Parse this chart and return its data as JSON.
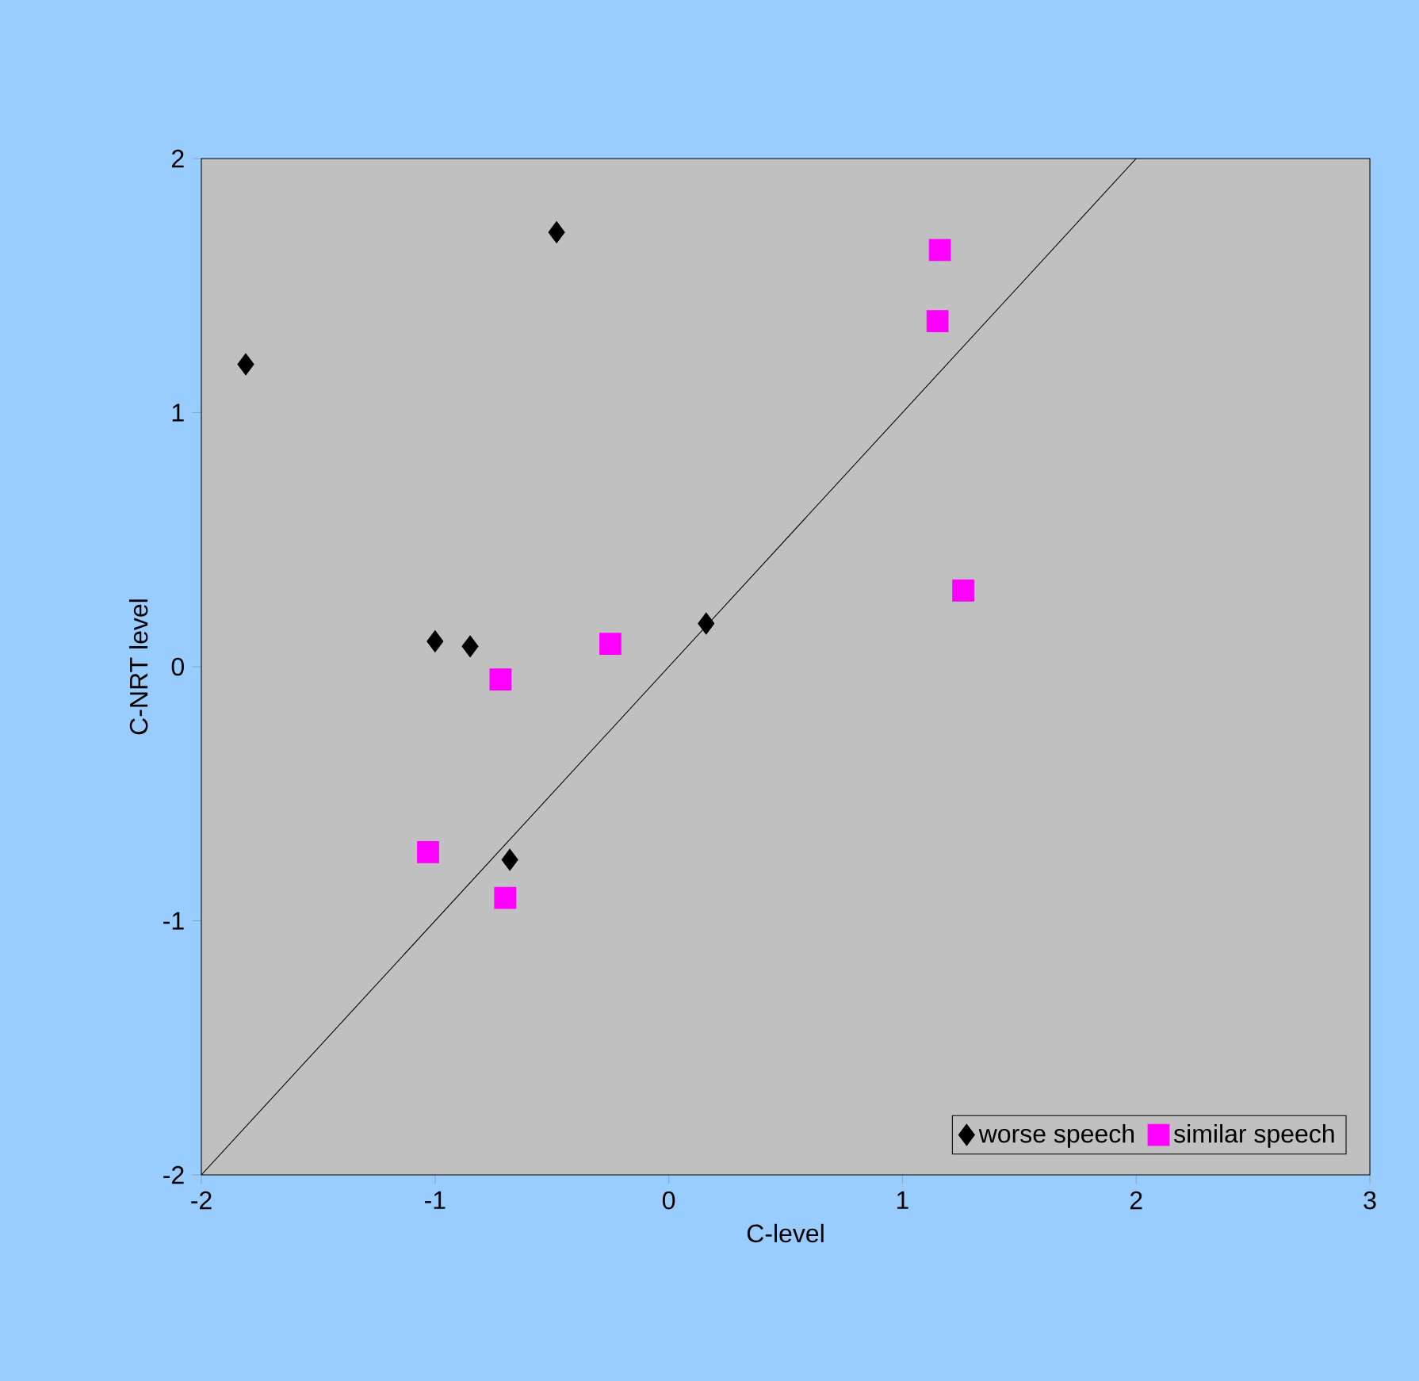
{
  "chart_data": {
    "type": "scatter",
    "xlabel": "C-level",
    "ylabel": "C-NRT level",
    "xlim": [
      -2,
      3
    ],
    "ylim": [
      -2,
      2
    ],
    "xticks": [
      -2,
      -1,
      0,
      1,
      2,
      3
    ],
    "yticks": [
      -2,
      -1,
      0,
      1,
      2
    ],
    "legend": "bottom right",
    "grid": false,
    "series": [
      {
        "name": "worse speech",
        "color": "#000000",
        "marker": "diamond",
        "x": [
          -1.81,
          -0.48,
          -1.0,
          -0.85,
          0.16,
          -0.68
        ],
        "values": [
          1.19,
          1.71,
          0.1,
          0.08,
          0.17,
          -0.76
        ]
      },
      {
        "name": "similar speech",
        "color": "#ff00ff",
        "marker": "square",
        "x": [
          1.16,
          1.15,
          1.26,
          -0.25,
          -0.72,
          -1.03,
          -0.7
        ],
        "values": [
          1.64,
          1.36,
          0.3,
          0.09,
          -0.05,
          -0.73,
          -0.91
        ]
      },
      {
        "type": "line",
        "color": "#000000",
        "marker": "none",
        "line_style": "solid",
        "x": [
          -2,
          2
        ],
        "values": [
          -2,
          2
        ]
      }
    ]
  }
}
